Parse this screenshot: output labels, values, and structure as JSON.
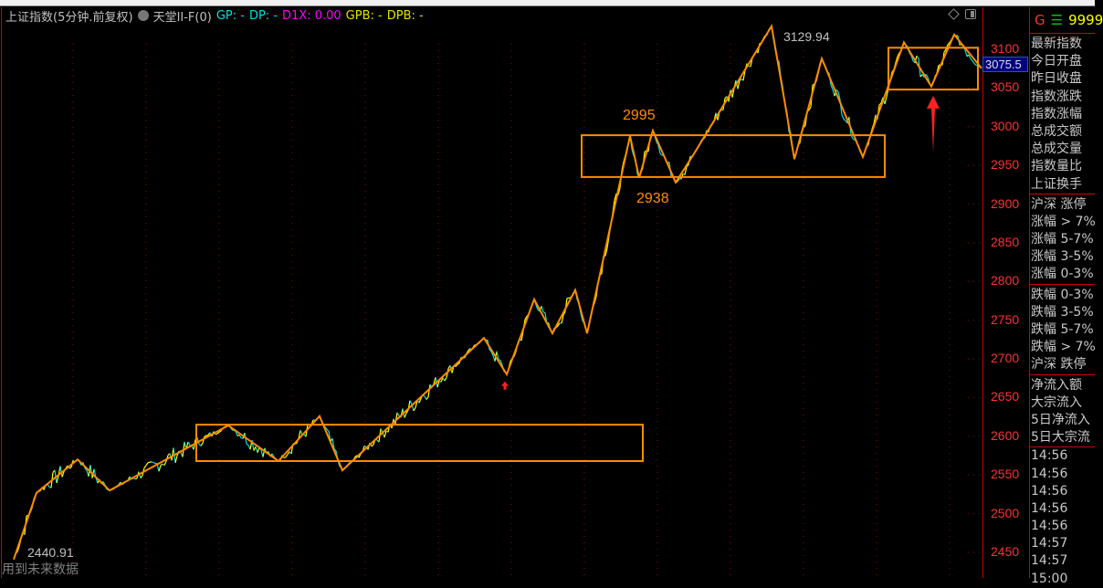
{
  "title": {
    "symbol": "上证指数(5分钟.前复权)",
    "indicator": "天堂II-F(0)",
    "gp": "GP: -",
    "dp": "DP: -",
    "d1x": "D1X: 0.00",
    "gpb": "GPB: -",
    "dpb": "DPB: -"
  },
  "colors": {
    "axis": "#ff3030",
    "up": "#ffff00",
    "down": "#00e0e0",
    "zigzag": "#ff8c00",
    "box": "#ff8c00",
    "arrow": "#ff2020"
  },
  "watermark": "用到未来数据",
  "current_price": "3075.5",
  "panel": {
    "header": {
      "g": "G",
      "menu_icon": "menu-icon",
      "code": "9999"
    },
    "quote_rows": [
      "最新指数",
      "今日开盘",
      "昨日收盘",
      "指数涨跌",
      "指数涨幅",
      "总成交额",
      "总成交量",
      "指数量比",
      "上证换手"
    ],
    "up_rows": [
      "沪深 涨停",
      "涨幅 > 7%",
      "涨幅 5-7%",
      "涨幅 3-5%",
      "涨幅 0-3%"
    ],
    "down_rows": [
      "跌幅 0-3%",
      "跌幅 3-5%",
      "跌幅 5-7%",
      "跌幅 > 7%",
      "沪深 跌停"
    ],
    "flow_rows": [
      "净流入额",
      "大宗流入",
      "5日净流入",
      "5日大宗流"
    ],
    "ticks": [
      "14:56",
      "14:56",
      "14:56",
      "14:56",
      "14:56",
      "14:57",
      "14:57",
      "15:00"
    ]
  },
  "chart_data": {
    "type": "line",
    "ylim": [
      2430,
      3140
    ],
    "yticks": [
      "3100",
      "3050",
      "3000",
      "2950",
      "2900",
      "2850",
      "2800",
      "2750",
      "2700",
      "2650",
      "2600",
      "2550",
      "2500",
      "2450"
    ],
    "zigzag": [
      [
        0,
        2440.91
      ],
      [
        25,
        2527
      ],
      [
        70,
        2570
      ],
      [
        105,
        2530
      ],
      [
        235,
        2614
      ],
      [
        290,
        2568
      ],
      [
        335,
        2626
      ],
      [
        360,
        2556
      ],
      [
        515,
        2727
      ],
      [
        540,
        2680
      ],
      [
        570,
        2777
      ],
      [
        590,
        2733
      ],
      [
        615,
        2789
      ],
      [
        628,
        2733
      ],
      [
        675,
        2988
      ],
      [
        685,
        2934
      ],
      [
        700,
        2995
      ],
      [
        725,
        2928
      ],
      [
        745,
        2965
      ],
      [
        830,
        3129.94
      ],
      [
        845,
        3028
      ],
      [
        855,
        2958
      ],
      [
        885,
        3088
      ],
      [
        930,
        2961
      ],
      [
        975,
        3109
      ],
      [
        1005,
        3052
      ],
      [
        1030,
        3119
      ],
      [
        1060,
        3075.5
      ]
    ],
    "boxes": [
      {
        "x": [
          200,
          689
        ],
        "y": [
          2568,
          2615
        ]
      },
      {
        "x": [
          622,
          954
        ],
        "y": [
          2935,
          2989
        ]
      },
      {
        "x": [
          958,
          1056
        ],
        "y": [
          3048,
          3102
        ]
      }
    ],
    "annotations": [
      {
        "text": "2995"
      },
      {
        "text": "2938"
      },
      {
        "text": "3129.94"
      },
      {
        "text": "2440.91"
      }
    ],
    "arrows": [
      {
        "x": 538,
        "y": 2665,
        "size": "small"
      },
      {
        "x": 1007,
        "y": 3040,
        "size": "large"
      }
    ]
  }
}
